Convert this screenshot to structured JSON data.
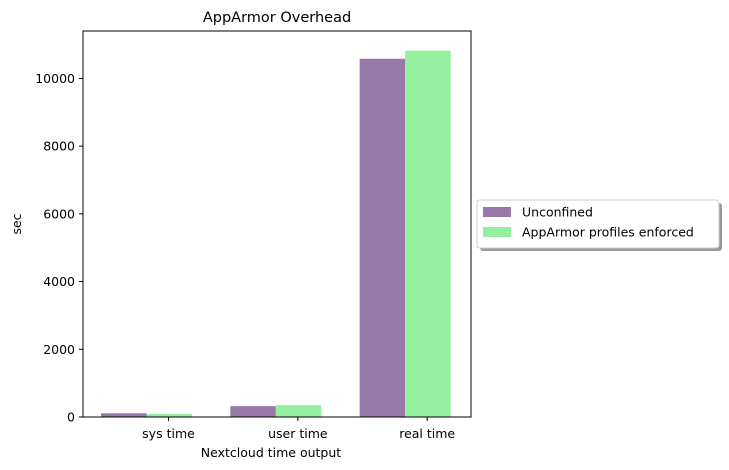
{
  "chart_data": {
    "type": "bar",
    "title": "AppArmor Overhead",
    "xlabel": "Nextcloud time output",
    "ylabel": "sec",
    "categories": [
      "sys time",
      "user time",
      "real time"
    ],
    "series": [
      {
        "name": "Unconfined",
        "color": "#9878a7",
        "values": [
          110,
          320,
          10580
        ]
      },
      {
        "name": "AppArmor profiles enforced",
        "color": "#94f09f",
        "values": [
          90,
          350,
          10820
        ]
      }
    ],
    "ylim": [
      0,
      11400
    ],
    "yticks": [
      0,
      2000,
      4000,
      6000,
      8000,
      10000
    ],
    "grid": false,
    "legend_position": "center-right"
  }
}
